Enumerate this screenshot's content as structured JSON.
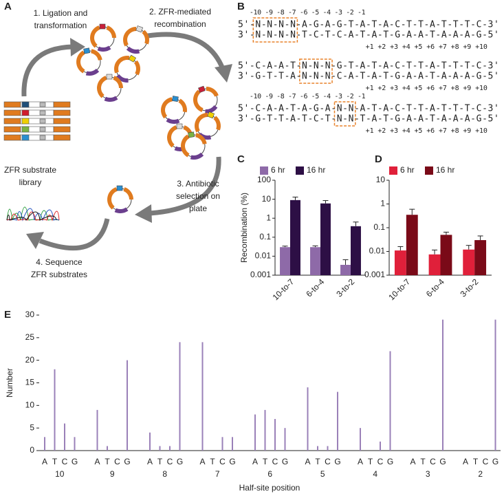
{
  "diagram": {
    "panel": "A",
    "steps": [
      [
        "1. Ligation and",
        "transformation"
      ],
      [
        "2. ZFR-mediated",
        "recombination"
      ],
      [
        "3. Antibiotic",
        "selection on",
        "plate"
      ],
      [
        "4. Sequence",
        "ZFR substrates"
      ]
    ],
    "library": [
      "ZFR substrate",
      "library"
    ]
  },
  "sequences": {
    "panel": "B",
    "blocks": [
      {
        "upper_positions": "-10 -9 -8 -7 -6 -5 -4 -3 -2 -1",
        "top": "5'-N-N-N-N-A-G-A-G-T-A-T-A-C-T-T-A-T-T-T-C-3'",
        "bottom": "3'-N-N-N-N-T-C-T-C-A-T-A-T-G-A-A-T-A-A-A-G-5'",
        "lower_positions": "+1 +2 +3 +4 +5 +6 +7 +8 +9 +10"
      },
      {
        "top": "5'-C-A-A-T-N-N-N-G-T-A-T-A-C-T-T-A-T-T-T-C-3'",
        "bottom": "3'-G-T-T-A-N-N-N-C-A-T-A-T-G-A-A-T-A-A-A-G-5'",
        "lower_positions": "+1 +2 +3 +4 +5 +6 +7 +8 +9 +10"
      },
      {
        "upper_positions": "-10 -9 -8 -7 -6 -5 -4 -3 -2 -1",
        "top": "5'-C-A-A-T-A-G-A-N-N-A-T-A-C-T-T-A-T-T-T-C-3'",
        "bottom": "3'-G-T-T-A-T-C-T-N-N-T-A-T-G-A-A-T-A-A-A-G-5'",
        "lower_positions": "+1 +2 +3 +4 +5 +6 +7 +8 +9 +10"
      }
    ]
  },
  "chart_data": [
    {
      "type": "bar",
      "panel": "C",
      "ylabel": "Recombination (%)",
      "log": true,
      "legend": "top",
      "categories": [
        "10-to-7",
        "6-to-4",
        "3-to-2"
      ],
      "series": [
        {
          "name": "6 hr",
          "color": "#8e6aa8",
          "values": [
            0.03,
            0.03,
            0.0035
          ],
          "errors": [
            0.004,
            0.005,
            0.003
          ]
        },
        {
          "name": "16 hr",
          "color": "#2d0f45",
          "values": [
            9,
            6,
            0.38
          ],
          "errors": [
            4,
            2.5,
            0.25
          ]
        }
      ],
      "ylim": [
        0.001,
        100
      ],
      "yticks": [
        0.001,
        0.01,
        0.1,
        1,
        10,
        100
      ]
    },
    {
      "type": "bar",
      "panel": "D",
      "log": true,
      "legend": "top",
      "categories": [
        "10-to-7",
        "6-to-4",
        "3-to-2"
      ],
      "series": [
        {
          "name": "6 hr",
          "color": "#e0203a",
          "values": [
            0.011,
            0.0075,
            0.012
          ],
          "errors": [
            0.005,
            0.004,
            0.006
          ]
        },
        {
          "name": "16 hr",
          "color": "#7a0a18",
          "values": [
            0.35,
            0.05,
            0.03
          ],
          "errors": [
            0.25,
            0.015,
            0.015
          ]
        }
      ],
      "ylim": [
        0.001,
        10
      ],
      "yticks": [
        0.001,
        0.01,
        0.1,
        1,
        10
      ]
    },
    {
      "type": "needle",
      "panel": "E",
      "xlabel": "Half-site position",
      "ylabel": "Number",
      "color": "#9a80b8",
      "groups": [
        "10",
        "9",
        "8",
        "7",
        "6",
        "5",
        "4",
        "3",
        "2"
      ],
      "subcategories": [
        "A",
        "T",
        "C",
        "G"
      ],
      "values": [
        [
          3,
          18,
          6,
          3
        ],
        [
          9,
          1,
          0,
          20
        ],
        [
          4,
          1,
          1,
          24
        ],
        [
          24,
          0,
          3,
          3
        ],
        [
          8,
          9,
          7,
          5
        ],
        [
          14,
          1,
          1,
          13
        ],
        [
          5,
          0,
          2,
          22
        ],
        [
          0,
          0,
          0,
          29
        ],
        [
          0,
          0,
          0,
          29
        ]
      ],
      "ylim": [
        0,
        30
      ],
      "yticks": [
        0,
        5,
        10,
        15,
        20,
        25,
        30
      ]
    }
  ]
}
